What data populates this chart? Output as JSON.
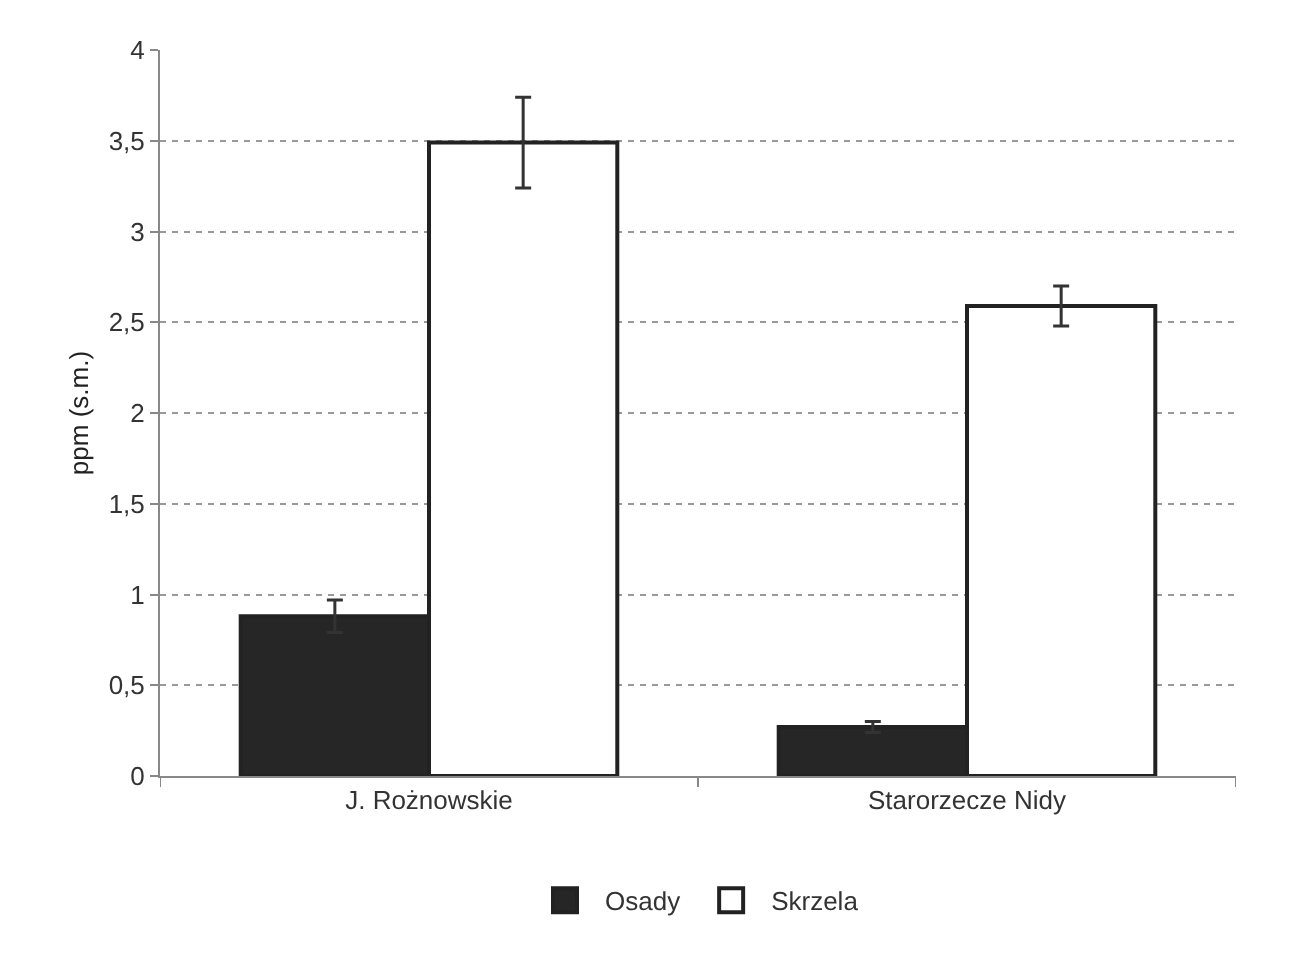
{
  "chart_data": {
    "type": "bar",
    "ylabel": "ppm (s.m.)",
    "categories": [
      "J. Rożnowskie",
      "Starorzecze Nidy"
    ],
    "series": [
      {
        "name": "Osady",
        "color": "#262626",
        "values": [
          0.88,
          0.27
        ],
        "errors": [
          0.09,
          0.03
        ]
      },
      {
        "name": "Skrzela",
        "color": "#ffffff",
        "values": [
          3.49,
          2.59
        ],
        "errors": [
          0.25,
          0.11
        ]
      }
    ],
    "ylim": [
      0,
      4
    ],
    "yticks": [
      0,
      {
        "value": 0.5,
        "label": "0,5"
      },
      1,
      {
        "value": 1.5,
        "label": "1,5"
      },
      2,
      {
        "value": 2.5,
        "label": "2,5"
      },
      3,
      {
        "value": 3.5,
        "label": "3,5"
      },
      4
    ],
    "grid": "y",
    "legend": "bottom"
  }
}
